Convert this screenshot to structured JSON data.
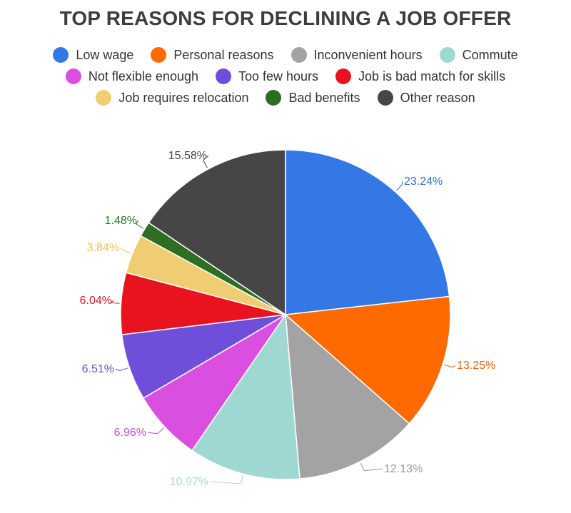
{
  "chart_data": {
    "type": "pie",
    "title": "TOP REASONS FOR DECLINING A JOB OFFER",
    "legend_placement": "top",
    "categories": [
      "Low wage",
      "Personal reasons",
      "Inconvenient hours",
      "Commute",
      "Not flexible enough",
      "Too few hours",
      "Job is bad match for skills",
      "Job requires relocation",
      "Bad benefits",
      "Other reason"
    ],
    "values": [
      23.24,
      13.25,
      12.13,
      10.97,
      6.96,
      6.51,
      6.04,
      3.84,
      1.48,
      15.58
    ],
    "value_labels": [
      "23.24%",
      "13.25%",
      "12.13%",
      "10.97%",
      "6.96%",
      "6.51%",
      "6.04%",
      "3.84%",
      "1.48%",
      "15.58%"
    ],
    "colors": [
      "#3478e6",
      "#ff6a00",
      "#a3a3a3",
      "#9fd8d3",
      "#da4fe0",
      "#6f4fd9",
      "#e8131f",
      "#f0cd72",
      "#2e6e22",
      "#464646"
    ],
    "label_colors": [
      "#2f6fc9",
      "#e8620a",
      "#9a9a9a",
      "#a6dcd8",
      "#c94ad0",
      "#6a4ccf",
      "#d71a22",
      "#e7c35a",
      "#2e6e22",
      "#464646"
    ]
  }
}
